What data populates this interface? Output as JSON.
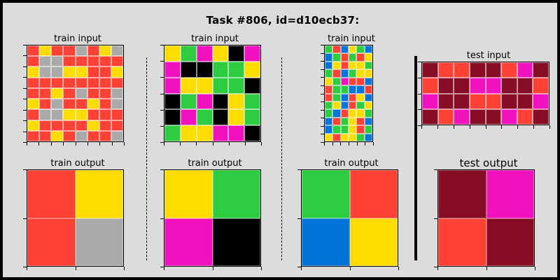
{
  "header": {
    "title": "Task #806, id=d10ecb37:"
  },
  "colors": {
    "R": "#ff4136",
    "Y": "#ffdc00",
    "A": "#aaaaaa",
    "G": "#2ecc40",
    "M": "#f012be",
    "K": "#000000",
    "B": "#0074d9",
    "W": "#870c25"
  },
  "panels": [
    {
      "label": "train input",
      "grid": [
        "RYRRARYA",
        "RAARRRRR",
        "YAAYYRRY",
        "RRRRRRRR",
        "RRYRARRA",
        "YRARRYRA",
        "RAAYYRRR",
        "YRRRRYRR",
        "RRYRARRA"
      ]
    },
    {
      "label": "train input",
      "grid": [
        "YGMYKM",
        "MKKGGY",
        "MYYGGK",
        "KGMKYG",
        "KMGKYG",
        "GYYMMK"
      ]
    },
    {
      "label": "train input",
      "grid": [
        "GRBYGB",
        "BGRGRY",
        "BYRYYG",
        "GRBGYY",
        "YGMRRB",
        "RGGBBR",
        "RGBRYB",
        "GYBRGY",
        "GBRYYG",
        "BRGYRB",
        "BGGYRG",
        "YRYYGB"
      ]
    },
    {
      "label": "test input",
      "grid": [
        "WRRWWRMW",
        "RWWMMWWR",
        "MWWRRWWM",
        "WRMWWMRW"
      ]
    },
    {
      "label": "train output",
      "grid": [
        "RY",
        "RA"
      ]
    },
    {
      "label": "train output",
      "grid": [
        "YG",
        "MK"
      ]
    },
    {
      "label": "train output",
      "grid": [
        "GR",
        "BY"
      ]
    },
    {
      "label": "test output",
      "grid": [
        "WM",
        "RW"
      ]
    }
  ]
}
